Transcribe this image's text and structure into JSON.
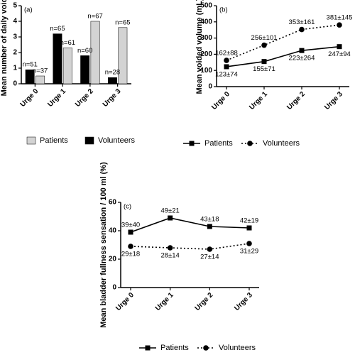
{
  "chart_data": [
    {
      "type": "bar",
      "panel": "(a)",
      "ylabel": "Mean number of daily voids",
      "categories": [
        "Urge 0",
        "Urge 1",
        "Urge 2",
        "Urge 3"
      ],
      "series": [
        {
          "name": "Patients",
          "color": "#d3d3d3",
          "values": [
            0.5,
            2.3,
            4.0,
            3.6
          ],
          "annotations": [
            "n=37",
            "n=61",
            "n=67",
            "n=65"
          ]
        },
        {
          "name": "Volunteers",
          "color": "#000000",
          "values": [
            0.9,
            3.2,
            1.8,
            0.4
          ],
          "annotations": [
            "n=51",
            "n=65",
            "n=60",
            "n=28"
          ]
        }
      ],
      "ylim": [
        0,
        5
      ],
      "yticks": [
        0,
        1,
        2,
        3,
        4,
        5
      ],
      "grid": false
    },
    {
      "type": "line",
      "panel": "(b)",
      "ylabel": "Mean voided volume (mL)",
      "categories": [
        "Urge 0",
        "Urge 1",
        "Urge 2",
        "Urge 3"
      ],
      "series": [
        {
          "name": "Patients",
          "color": "#000000",
          "marker": "square",
          "linestyle": "solid",
          "values": [
            123,
            155,
            223,
            247
          ],
          "value_labels": [
            "123±74",
            "155±71",
            "223±264",
            "247±94"
          ]
        },
        {
          "name": "Volunteers",
          "color": "#000000",
          "marker": "circle",
          "linestyle": "dotted",
          "values": [
            162,
            256,
            353,
            381
          ],
          "value_labels": [
            "162±88",
            "256±101",
            "353±161",
            "381±145"
          ]
        }
      ],
      "ylim": [
        0,
        500
      ],
      "yticks": [
        0,
        100,
        200,
        300,
        400,
        500
      ],
      "grid": false
    },
    {
      "type": "line",
      "panel": "(c)",
      "ylabel": "Mean bladder fullness sensation / 100 ml (%)",
      "categories": [
        "Urge 0",
        "Urge 1",
        "Urge 2",
        "Urge 3"
      ],
      "series": [
        {
          "name": "Patients",
          "color": "#000000",
          "marker": "square",
          "linestyle": "solid",
          "values": [
            39,
            49,
            43,
            42
          ],
          "value_labels": [
            "39±40",
            "49±21",
            "43±18",
            "42±19"
          ]
        },
        {
          "name": "Volunteers",
          "color": "#000000",
          "marker": "circle",
          "linestyle": "dotted",
          "values": [
            29,
            28,
            27,
            31
          ],
          "value_labels": [
            "29±18",
            "28±14",
            "27±14",
            "31±29"
          ]
        }
      ],
      "ylim": [
        0,
        60
      ],
      "yticks": [
        0,
        20,
        40,
        60
      ],
      "grid": false
    }
  ]
}
